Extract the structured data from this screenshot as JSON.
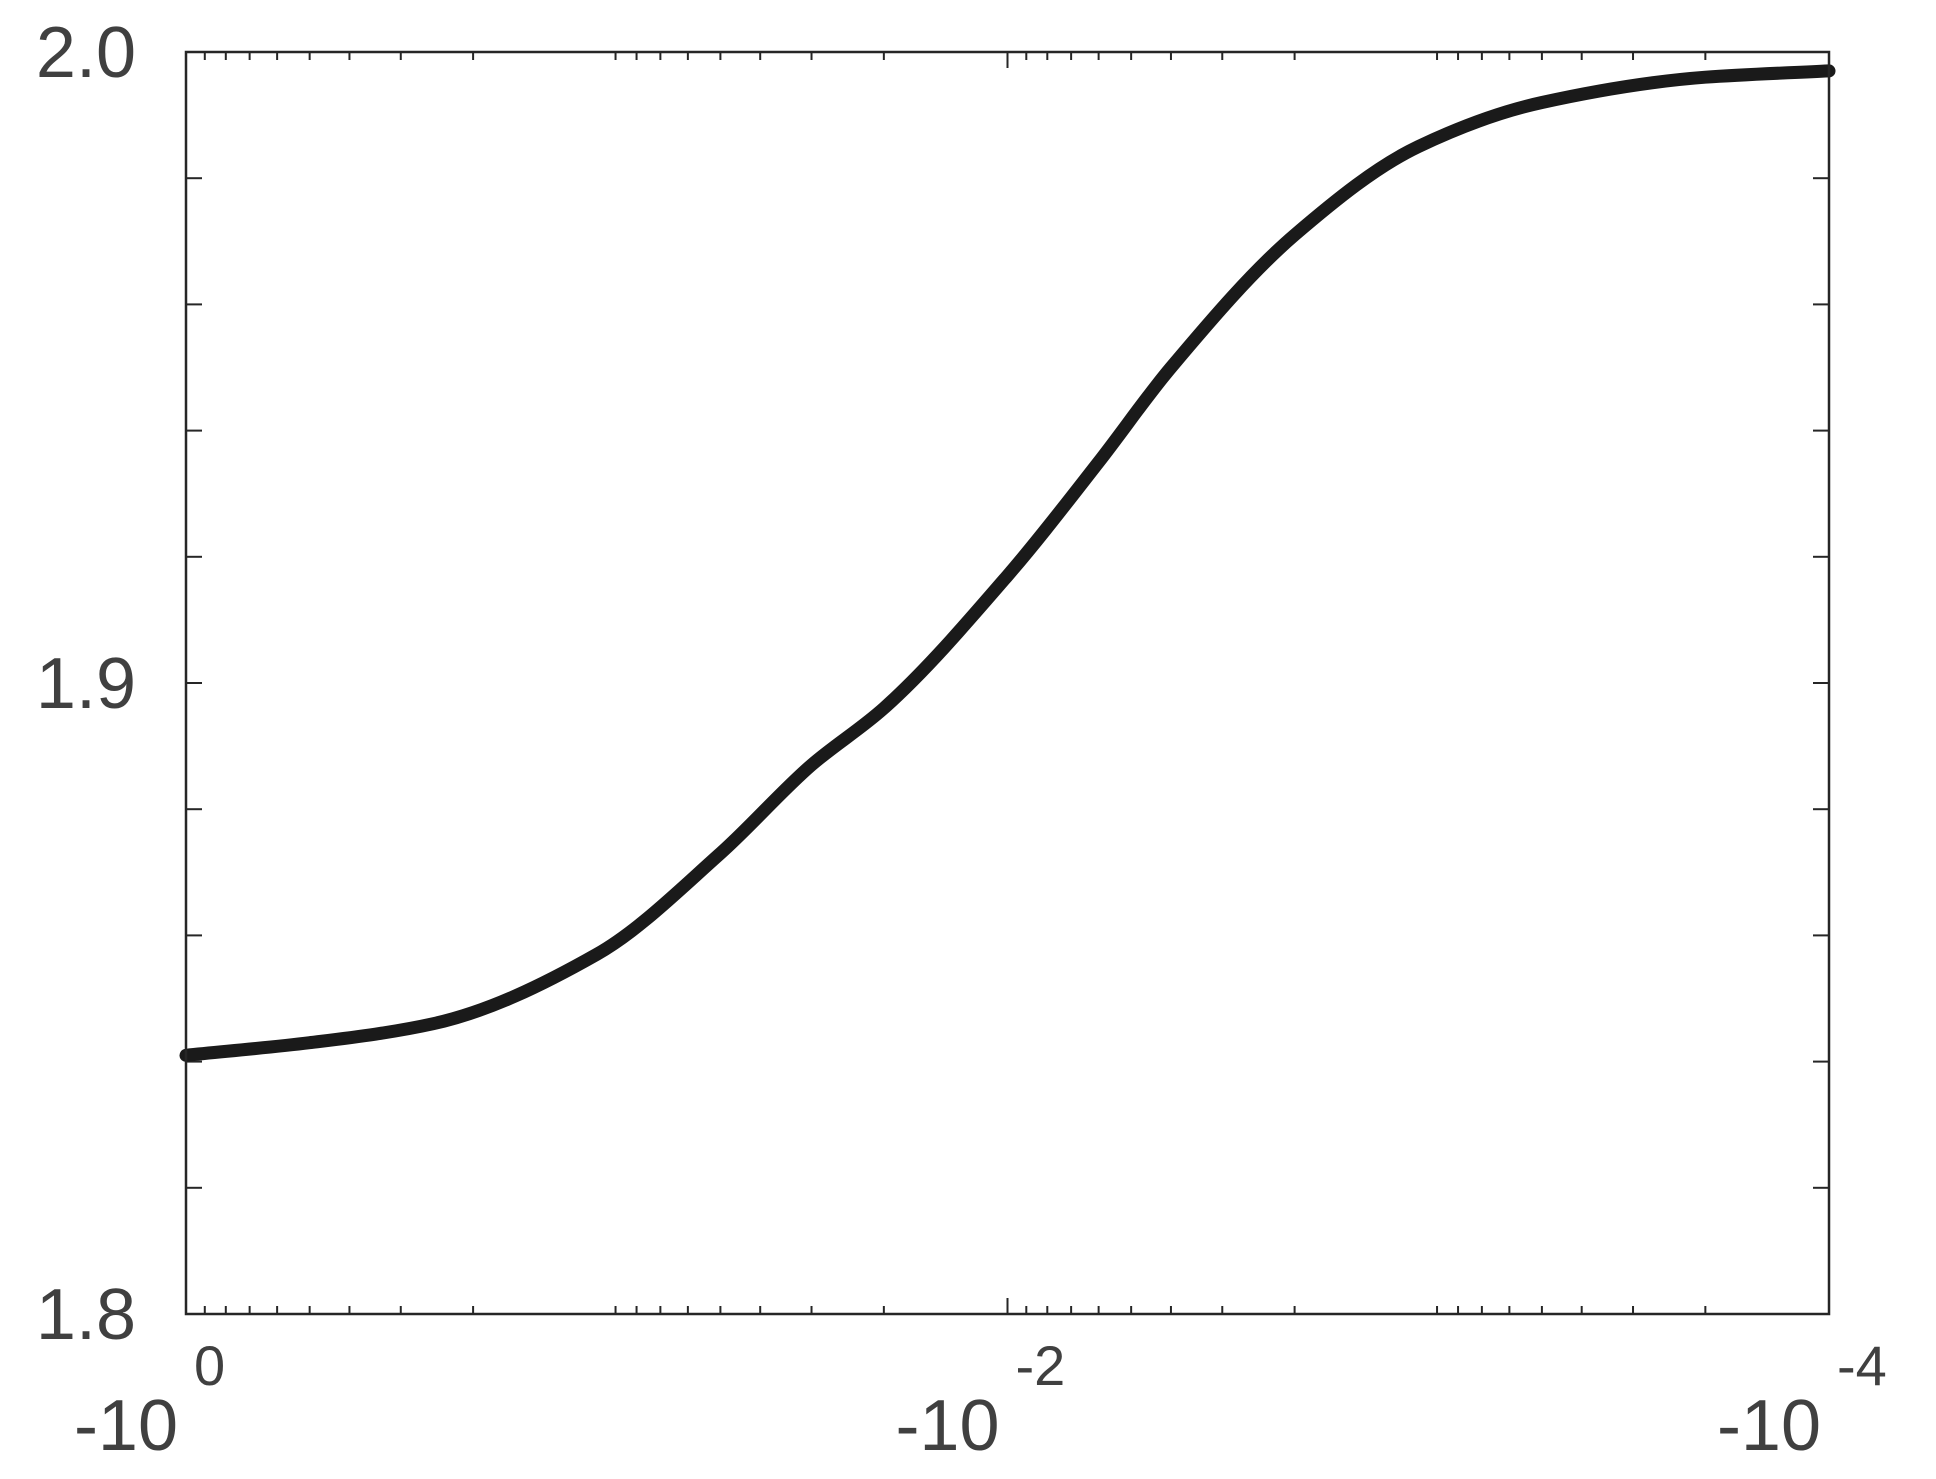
{
  "chart_data": {
    "type": "line",
    "title": "",
    "xlabel": "",
    "ylabel": "",
    "x_scale": "log",
    "xlim": [
      -1,
      -0.0001
    ],
    "ylim": [
      1.8,
      2.0
    ],
    "grid": false,
    "legend": "none",
    "line_color": "#1a1a1a",
    "y_ticks": [
      {
        "value": 1.8,
        "label": "1.8"
      },
      {
        "value": 1.9,
        "label": "1.9"
      },
      {
        "value": 2.0,
        "label": "2.0"
      }
    ],
    "x_ticks": [
      {
        "value": -1,
        "base": "-10",
        "exp": "0"
      },
      {
        "value": -0.01,
        "base": "-10",
        "exp": "-2"
      },
      {
        "value": -0.0001,
        "base": "-10",
        "exp": "-4"
      }
    ],
    "series": [
      {
        "x": [
          -1,
          -0.5,
          -0.25,
          -0.1,
          -0.05,
          -0.03,
          -0.02,
          -0.01,
          -0.006,
          -0.004,
          -0.002,
          -0.001,
          -0.0005,
          -0.0002,
          -0.0001
        ],
        "y": [
          1.841,
          1.843,
          1.846,
          1.857,
          1.873,
          1.887,
          1.896,
          1.917,
          1.935,
          1.95,
          1.971,
          1.985,
          1.992,
          1.996,
          1.997
        ]
      }
    ]
  }
}
